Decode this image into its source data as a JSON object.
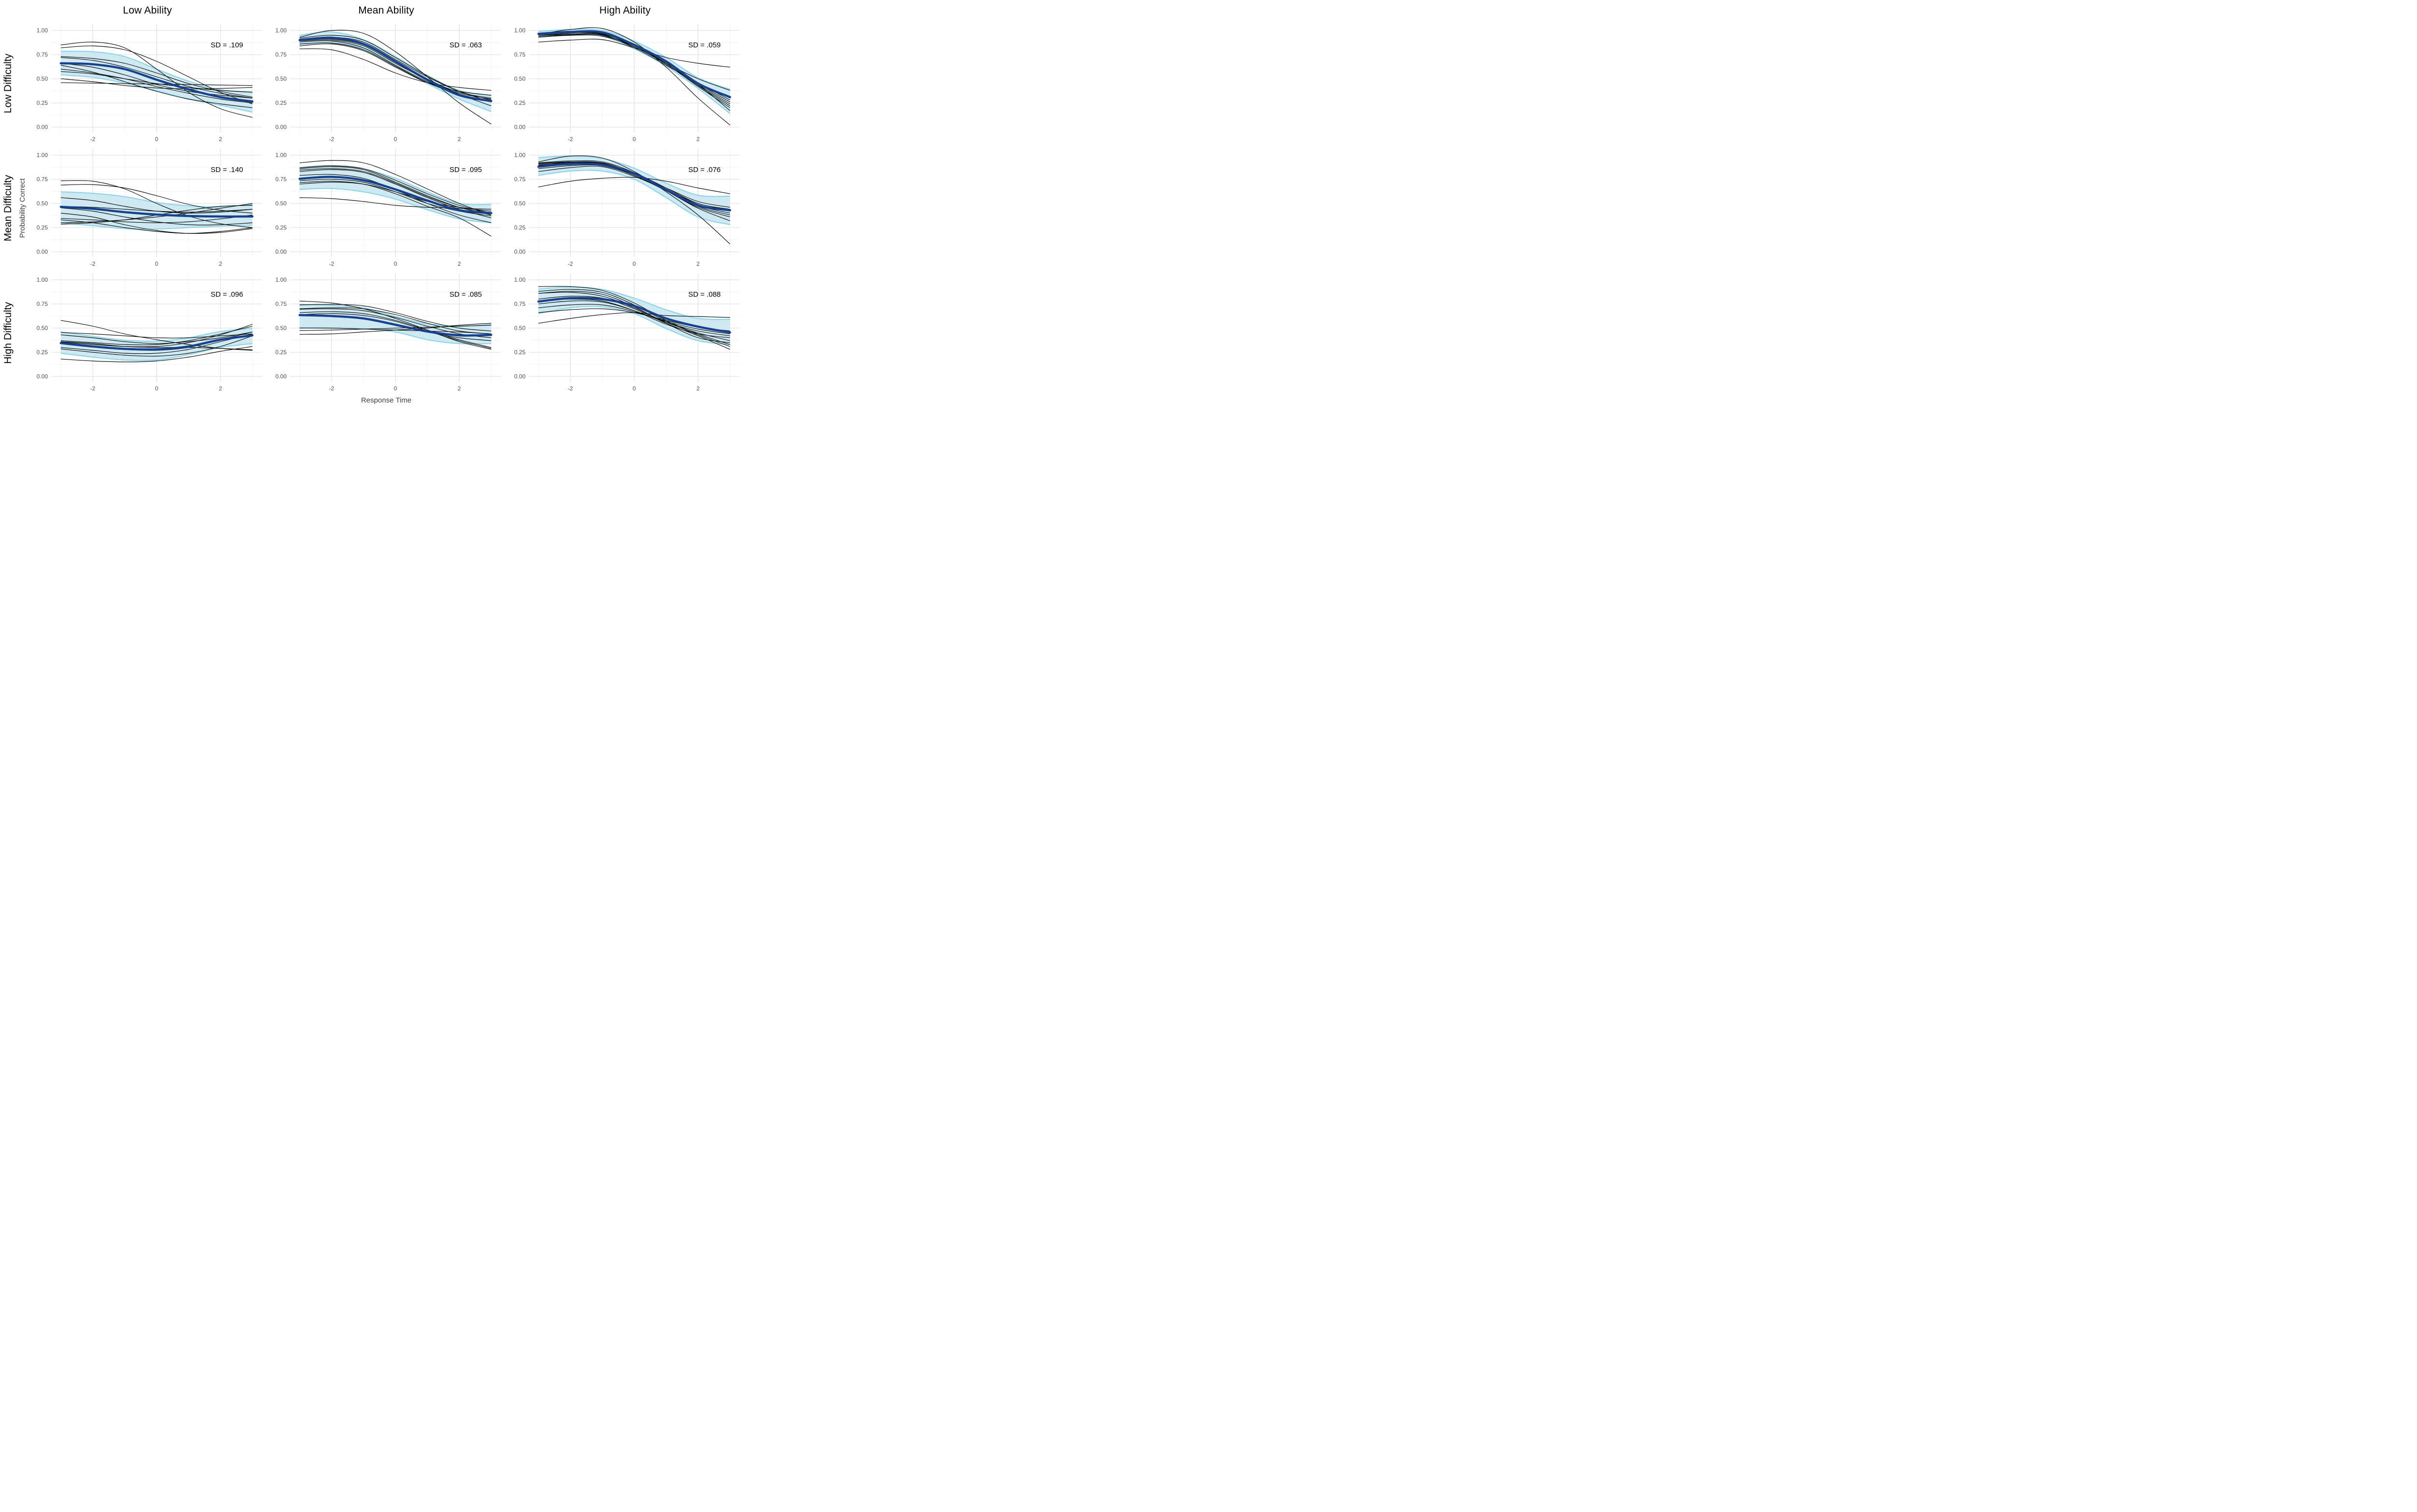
{
  "figure": {
    "col_titles": [
      "Low Ability",
      "Mean Ability",
      "High Ability"
    ],
    "row_titles": [
      "Low Difficulty",
      "Mean Difficulty",
      "High Difficulty"
    ],
    "x_axis_title": "Response Time",
    "y_axis_title": "Probability Correct"
  },
  "colors": {
    "mean_line": "#17418F",
    "band_fill": "#CFE9F3",
    "band_edge": "#8FD4E8",
    "individual_curve": "#0a0a0a",
    "grid_major": "#E5E5E5",
    "grid_minor": "#F1F1F1",
    "tick_text": "#4d4d4d",
    "background": "#ffffff"
  },
  "chart_data": {
    "type": "line",
    "x": [
      -3,
      -2,
      -1,
      0,
      1,
      2,
      3
    ],
    "xlim": [
      -3.3,
      3.3
    ],
    "ylim": [
      -0.055,
      1.065
    ],
    "x_ticks": [
      -2,
      0,
      2
    ],
    "x_tick_labels": [
      "-2",
      "0",
      "2"
    ],
    "x_minor": [
      -3,
      -1,
      1,
      3
    ],
    "y_ticks": [
      0,
      0.25,
      0.5,
      0.75,
      1
    ],
    "y_tick_labels": [
      "0.00",
      "0.25",
      "0.50",
      "0.75",
      "1.00"
    ],
    "y_minor": [
      0.125,
      0.375,
      0.625,
      0.875
    ],
    "grid": true,
    "legend": "none",
    "sd_label_pos": {
      "x": 2.2,
      "y": 0.85
    },
    "panels": [
      {
        "row": "Low Difficulty",
        "col": "Low Ability",
        "sd_label": "SD = .109",
        "mean": [
          0.66,
          0.65,
          0.6,
          0.49,
          0.39,
          0.31,
          0.265
        ],
        "upper": [
          0.785,
          0.78,
          0.73,
          0.6,
          0.475,
          0.385,
          0.365
        ],
        "lower": [
          0.54,
          0.515,
          0.455,
          0.375,
          0.29,
          0.225,
          0.155
        ],
        "curves": [
          [
            0.85,
            0.88,
            0.82,
            0.6,
            0.36,
            0.19,
            0.1
          ],
          [
            0.82,
            0.84,
            0.8,
            0.68,
            0.52,
            0.36,
            0.24
          ],
          [
            0.73,
            0.71,
            0.66,
            0.56,
            0.45,
            0.37,
            0.31
          ],
          [
            0.72,
            0.69,
            0.62,
            0.52,
            0.42,
            0.35,
            0.3
          ],
          [
            0.66,
            0.62,
            0.54,
            0.44,
            0.37,
            0.33,
            0.3
          ],
          [
            0.64,
            0.57,
            0.47,
            0.37,
            0.29,
            0.24,
            0.2
          ],
          [
            0.6,
            0.56,
            0.5,
            0.42,
            0.35,
            0.29,
            0.25
          ],
          [
            0.575,
            0.55,
            0.5,
            0.45,
            0.41,
            0.38,
            0.36
          ],
          [
            0.46,
            0.455,
            0.45,
            0.445,
            0.44,
            0.435,
            0.43
          ],
          [
            0.5,
            0.47,
            0.43,
            0.405,
            0.395,
            0.4,
            0.41
          ]
        ]
      },
      {
        "row": "Low Difficulty",
        "col": "Mean Ability",
        "sd_label": "SD = .063",
        "mean": [
          0.9,
          0.925,
          0.86,
          0.68,
          0.49,
          0.33,
          0.27
        ],
        "upper": [
          0.95,
          0.985,
          0.905,
          0.73,
          0.535,
          0.38,
          0.325
        ],
        "lower": [
          0.855,
          0.87,
          0.81,
          0.63,
          0.45,
          0.29,
          0.16
        ],
        "curves": [
          [
            0.93,
            1.0,
            0.97,
            0.78,
            0.52,
            0.25,
            0.03
          ],
          [
            0.92,
            0.95,
            0.9,
            0.72,
            0.53,
            0.37,
            0.26
          ],
          [
            0.91,
            0.93,
            0.88,
            0.7,
            0.52,
            0.37,
            0.28
          ],
          [
            0.9,
            0.92,
            0.86,
            0.68,
            0.5,
            0.34,
            0.22
          ],
          [
            0.895,
            0.91,
            0.85,
            0.67,
            0.48,
            0.33,
            0.26
          ],
          [
            0.89,
            0.9,
            0.84,
            0.66,
            0.49,
            0.36,
            0.3
          ],
          [
            0.88,
            0.89,
            0.82,
            0.64,
            0.47,
            0.35,
            0.29
          ],
          [
            0.86,
            0.87,
            0.8,
            0.63,
            0.46,
            0.34,
            0.27
          ],
          [
            0.84,
            0.86,
            0.79,
            0.62,
            0.46,
            0.37,
            0.33
          ],
          [
            0.81,
            0.8,
            0.7,
            0.56,
            0.46,
            0.41,
            0.38
          ]
        ]
      },
      {
        "row": "Low Difficulty",
        "col": "High Ability",
        "sd_label": "SD = .059",
        "mean": [
          0.965,
          0.985,
          0.98,
          0.85,
          0.68,
          0.45,
          0.31
        ],
        "upper": [
          0.99,
          1.01,
          1.0,
          0.89,
          0.72,
          0.51,
          0.39
        ],
        "lower": [
          0.93,
          0.95,
          0.94,
          0.81,
          0.63,
          0.4,
          0.14
        ],
        "curves": [
          [
            0.96,
            1.01,
            1.02,
            0.88,
            0.62,
            0.3,
            0.02
          ],
          [
            0.97,
            0.99,
            0.98,
            0.86,
            0.68,
            0.46,
            0.28
          ],
          [
            0.97,
            0.985,
            0.975,
            0.85,
            0.68,
            0.44,
            0.24
          ],
          [
            0.96,
            0.98,
            0.97,
            0.84,
            0.66,
            0.43,
            0.22
          ],
          [
            0.96,
            0.98,
            0.965,
            0.85,
            0.67,
            0.45,
            0.26
          ],
          [
            0.95,
            0.97,
            0.96,
            0.83,
            0.65,
            0.42,
            0.2
          ],
          [
            0.95,
            0.96,
            0.955,
            0.84,
            0.67,
            0.46,
            0.3
          ],
          [
            0.94,
            0.955,
            0.95,
            0.82,
            0.64,
            0.44,
            0.17
          ],
          [
            0.93,
            0.95,
            0.94,
            0.83,
            0.66,
            0.5,
            0.38
          ],
          [
            0.88,
            0.9,
            0.905,
            0.82,
            0.72,
            0.66,
            0.62
          ]
        ]
      },
      {
        "row": "Mean Difficulty",
        "col": "Low Ability",
        "sd_label": "SD = .140",
        "mean": [
          0.465,
          0.445,
          0.41,
          0.385,
          0.37,
          0.365,
          0.365
        ],
        "upper": [
          0.62,
          0.605,
          0.57,
          0.51,
          0.475,
          0.465,
          0.49
        ],
        "lower": [
          0.3,
          0.27,
          0.24,
          0.235,
          0.25,
          0.265,
          0.275
        ],
        "curves": [
          [
            0.735,
            0.73,
            0.65,
            0.5,
            0.37,
            0.29,
            0.25
          ],
          [
            0.69,
            0.695,
            0.66,
            0.58,
            0.49,
            0.43,
            0.4
          ],
          [
            0.56,
            0.53,
            0.47,
            0.42,
            0.4,
            0.41,
            0.44
          ],
          [
            0.47,
            0.46,
            0.44,
            0.42,
            0.41,
            0.42,
            0.44
          ],
          [
            0.455,
            0.42,
            0.36,
            0.31,
            0.28,
            0.28,
            0.3
          ],
          [
            0.4,
            0.36,
            0.28,
            0.22,
            0.19,
            0.2,
            0.24
          ],
          [
            0.345,
            0.33,
            0.31,
            0.3,
            0.31,
            0.34,
            0.38
          ],
          [
            0.33,
            0.3,
            0.25,
            0.21,
            0.19,
            0.21,
            0.25
          ],
          [
            0.3,
            0.31,
            0.33,
            0.36,
            0.4,
            0.45,
            0.5
          ],
          [
            0.285,
            0.3,
            0.33,
            0.38,
            0.43,
            0.47,
            0.48
          ]
        ]
      },
      {
        "row": "Mean Difficulty",
        "col": "Mean Ability",
        "sd_label": "SD = .095",
        "mean": [
          0.755,
          0.775,
          0.74,
          0.645,
          0.53,
          0.43,
          0.4
        ],
        "upper": [
          0.87,
          0.89,
          0.855,
          0.76,
          0.62,
          0.5,
          0.49
        ],
        "lower": [
          0.645,
          0.655,
          0.62,
          0.545,
          0.435,
          0.34,
          0.3
        ],
        "curves": [
          [
            0.92,
            0.945,
            0.92,
            0.8,
            0.65,
            0.5,
            0.38
          ],
          [
            0.87,
            0.89,
            0.86,
            0.74,
            0.6,
            0.48,
            0.4
          ],
          [
            0.86,
            0.88,
            0.85,
            0.72,
            0.58,
            0.46,
            0.38
          ],
          [
            0.845,
            0.86,
            0.83,
            0.71,
            0.57,
            0.46,
            0.4
          ],
          [
            0.83,
            0.85,
            0.82,
            0.7,
            0.56,
            0.44,
            0.35
          ],
          [
            0.79,
            0.8,
            0.76,
            0.64,
            0.5,
            0.38,
            0.3
          ],
          [
            0.735,
            0.75,
            0.72,
            0.62,
            0.5,
            0.42,
            0.37
          ],
          [
            0.715,
            0.73,
            0.7,
            0.6,
            0.47,
            0.35,
            0.16
          ],
          [
            0.7,
            0.72,
            0.7,
            0.62,
            0.52,
            0.46,
            0.42
          ],
          [
            0.56,
            0.55,
            0.52,
            0.48,
            0.46,
            0.45,
            0.44
          ]
        ]
      },
      {
        "row": "Mean Difficulty",
        "col": "High Ability",
        "sd_label": "SD = .076",
        "mean": [
          0.88,
          0.91,
          0.9,
          0.81,
          0.64,
          0.48,
          0.43
        ],
        "upper": [
          0.975,
          0.99,
          0.965,
          0.865,
          0.71,
          0.585,
          0.575
        ],
        "lower": [
          0.79,
          0.835,
          0.835,
          0.75,
          0.56,
          0.36,
          0.28
        ],
        "curves": [
          [
            0.93,
            0.99,
            0.97,
            0.83,
            0.62,
            0.38,
            0.08
          ],
          [
            0.92,
            0.94,
            0.93,
            0.82,
            0.66,
            0.5,
            0.44
          ],
          [
            0.915,
            0.93,
            0.92,
            0.81,
            0.65,
            0.49,
            0.42
          ],
          [
            0.91,
            0.925,
            0.915,
            0.8,
            0.64,
            0.47,
            0.38
          ],
          [
            0.9,
            0.92,
            0.91,
            0.8,
            0.65,
            0.48,
            0.4
          ],
          [
            0.895,
            0.91,
            0.9,
            0.79,
            0.63,
            0.46,
            0.36
          ],
          [
            0.88,
            0.9,
            0.895,
            0.8,
            0.66,
            0.52,
            0.46
          ],
          [
            0.86,
            0.89,
            0.89,
            0.79,
            0.63,
            0.45,
            0.32
          ],
          [
            0.83,
            0.87,
            0.88,
            0.78,
            0.64,
            0.5,
            0.43
          ],
          [
            0.67,
            0.73,
            0.76,
            0.77,
            0.73,
            0.66,
            0.6
          ]
        ]
      },
      {
        "row": "High Difficulty",
        "col": "Low Ability",
        "sd_label": "SD = .096",
        "mean": [
          0.345,
          0.31,
          0.285,
          0.28,
          0.31,
          0.38,
          0.425
        ],
        "upper": [
          0.46,
          0.415,
          0.375,
          0.365,
          0.4,
          0.465,
          0.5
        ],
        "lower": [
          0.24,
          0.2,
          0.17,
          0.17,
          0.225,
          0.3,
          0.34
        ],
        "curves": [
          [
            0.58,
            0.52,
            0.44,
            0.38,
            0.33,
            0.29,
            0.27
          ],
          [
            0.455,
            0.44,
            0.42,
            0.4,
            0.4,
            0.42,
            0.44
          ],
          [
            0.43,
            0.4,
            0.36,
            0.34,
            0.36,
            0.4,
            0.46
          ],
          [
            0.37,
            0.35,
            0.33,
            0.33,
            0.37,
            0.44,
            0.52
          ],
          [
            0.355,
            0.33,
            0.31,
            0.31,
            0.35,
            0.43,
            0.54
          ],
          [
            0.345,
            0.31,
            0.28,
            0.27,
            0.3,
            0.38,
            0.46
          ],
          [
            0.3,
            0.27,
            0.24,
            0.24,
            0.28,
            0.36,
            0.44
          ],
          [
            0.285,
            0.25,
            0.22,
            0.21,
            0.24,
            0.31,
            0.42
          ],
          [
            0.18,
            0.16,
            0.15,
            0.16,
            0.2,
            0.26,
            0.31
          ],
          [
            0.36,
            0.34,
            0.31,
            0.3,
            0.3,
            0.29,
            0.275
          ]
        ]
      },
      {
        "row": "High Difficulty",
        "col": "Mean Ability",
        "sd_label": "SD = .085",
        "mean": [
          0.635,
          0.625,
          0.6,
          0.535,
          0.465,
          0.425,
          0.43
        ],
        "upper": [
          0.745,
          0.735,
          0.71,
          0.62,
          0.545,
          0.52,
          0.535
        ],
        "lower": [
          0.505,
          0.5,
          0.495,
          0.46,
          0.38,
          0.34,
          0.34
        ],
        "curves": [
          [
            0.78,
            0.76,
            0.7,
            0.6,
            0.48,
            0.36,
            0.28
          ],
          [
            0.74,
            0.745,
            0.73,
            0.66,
            0.57,
            0.5,
            0.47
          ],
          [
            0.7,
            0.71,
            0.7,
            0.64,
            0.55,
            0.47,
            0.44
          ],
          [
            0.695,
            0.7,
            0.68,
            0.61,
            0.52,
            0.44,
            0.4
          ],
          [
            0.66,
            0.67,
            0.65,
            0.58,
            0.48,
            0.38,
            0.3
          ],
          [
            0.64,
            0.65,
            0.63,
            0.57,
            0.47,
            0.37,
            0.29
          ],
          [
            0.635,
            0.63,
            0.6,
            0.54,
            0.46,
            0.4,
            0.37
          ],
          [
            0.5,
            0.5,
            0.49,
            0.48,
            0.47,
            0.46,
            0.44
          ],
          [
            0.475,
            0.48,
            0.49,
            0.5,
            0.51,
            0.52,
            0.53
          ],
          [
            0.435,
            0.44,
            0.46,
            0.48,
            0.5,
            0.53,
            0.55
          ]
        ]
      },
      {
        "row": "High Difficulty",
        "col": "High Ability",
        "sd_label": "SD = .088",
        "mean": [
          0.775,
          0.81,
          0.8,
          0.73,
          0.6,
          0.515,
          0.455
        ],
        "upper": [
          0.905,
          0.925,
          0.9,
          0.81,
          0.69,
          0.6,
          0.59
        ],
        "lower": [
          0.65,
          0.71,
          0.72,
          0.65,
          0.495,
          0.37,
          0.33
        ],
        "curves": [
          [
            0.93,
            0.93,
            0.89,
            0.76,
            0.58,
            0.44,
            0.33
          ],
          [
            0.88,
            0.9,
            0.87,
            0.74,
            0.57,
            0.43,
            0.31
          ],
          [
            0.86,
            0.88,
            0.85,
            0.72,
            0.55,
            0.4,
            0.35
          ],
          [
            0.86,
            0.87,
            0.83,
            0.71,
            0.56,
            0.45,
            0.37
          ],
          [
            0.8,
            0.83,
            0.81,
            0.7,
            0.55,
            0.42,
            0.28
          ],
          [
            0.78,
            0.8,
            0.78,
            0.68,
            0.54,
            0.44,
            0.4
          ],
          [
            0.75,
            0.78,
            0.77,
            0.68,
            0.56,
            0.47,
            0.42
          ],
          [
            0.71,
            0.74,
            0.74,
            0.67,
            0.57,
            0.49,
            0.44
          ],
          [
            0.66,
            0.69,
            0.7,
            0.66,
            0.58,
            0.51,
            0.47
          ],
          [
            0.55,
            0.6,
            0.64,
            0.66,
            0.63,
            0.62,
            0.61
          ]
        ]
      }
    ]
  }
}
